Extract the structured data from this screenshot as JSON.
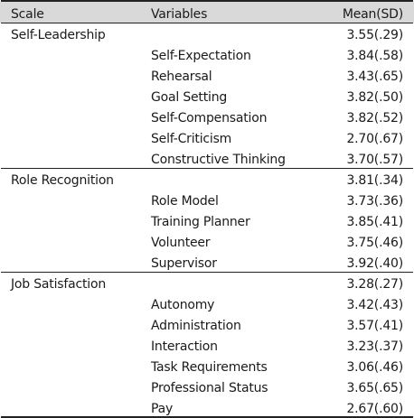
{
  "headers": {
    "scale": "Scale",
    "variables": "Variables",
    "mean": "Mean(SD)"
  },
  "groups": [
    {
      "scale": "Self-Leadership",
      "mean": "3.55(.29)",
      "rows": [
        {
          "variable": "Self-Expectation",
          "mean": "3.84(.58)"
        },
        {
          "variable": "Rehearsal",
          "mean": "3.43(.65)"
        },
        {
          "variable": "Goal Setting",
          "mean": "3.82(.50)"
        },
        {
          "variable": "Self-Compensation",
          "mean": "3.82(.52)"
        },
        {
          "variable": "Self-Criticism",
          "mean": "2.70(.67)"
        },
        {
          "variable": "Constructive  Thinking",
          "mean": "3.70(.57)"
        }
      ]
    },
    {
      "scale": "Role  Recognition",
      "mean": "3.81(.34)",
      "rows": [
        {
          "variable": "Role  Model",
          "mean": "3.73(.36)"
        },
        {
          "variable": "Training  Planner",
          "mean": "3.85(.41)"
        },
        {
          "variable": "Volunteer",
          "mean": "3.75(.46)"
        },
        {
          "variable": "Supervisor",
          "mean": "3.92(.40)"
        }
      ]
    },
    {
      "scale": "Job  Satisfaction",
      "mean": "3.28(.27)",
      "rows": [
        {
          "variable": "Autonomy",
          "mean": "3.42(.43)"
        },
        {
          "variable": "Administration",
          "mean": "3.57(.41)"
        },
        {
          "variable": "Interaction",
          "mean": "3.23(.37)"
        },
        {
          "variable": "Task  Requirements",
          "mean": "3.06(.46)"
        },
        {
          "variable": "Professional  Status",
          "mean": "3.65(.65)"
        },
        {
          "variable": "Pay",
          "mean": "2.67(.60)"
        }
      ]
    }
  ]
}
